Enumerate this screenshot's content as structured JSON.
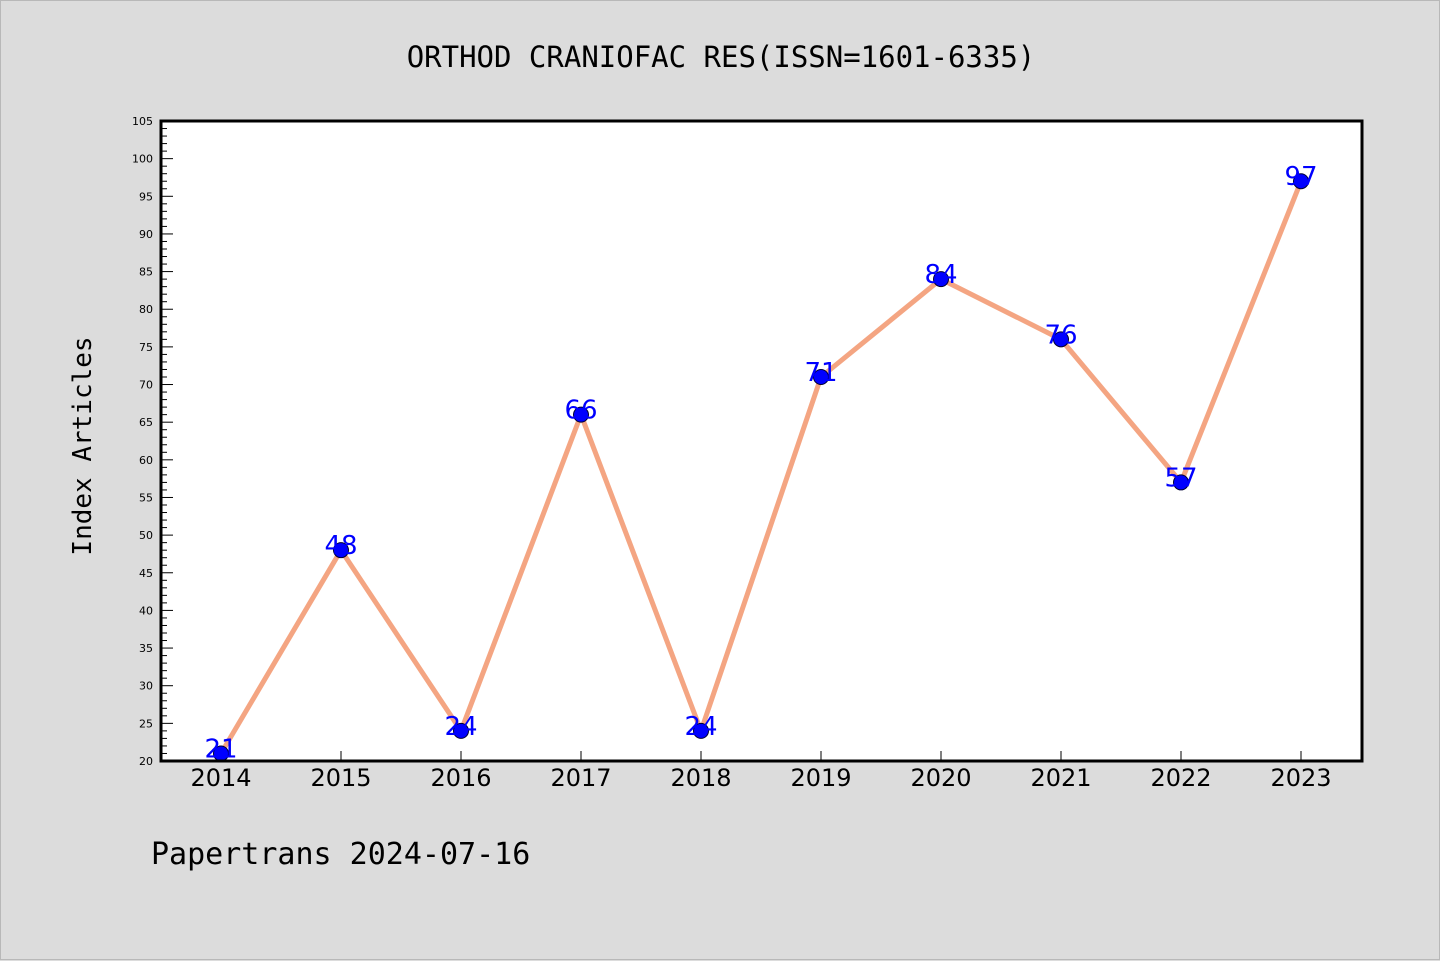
{
  "chart_data": {
    "type": "line",
    "title": "ORTHOD CRANIOFAC RES(ISSN=1601-6335)",
    "ylabel": "Index Articles",
    "xlabel": "",
    "categories": [
      "2014",
      "2015",
      "2016",
      "2017",
      "2018",
      "2019",
      "2020",
      "2021",
      "2022",
      "2023"
    ],
    "values": [
      21,
      48,
      24,
      66,
      24,
      71,
      84,
      76,
      57,
      97
    ],
    "data_labels": [
      "21",
      "48",
      "24",
      "66",
      "24",
      "71",
      "84",
      "76",
      "57",
      "97"
    ],
    "ylim": [
      20,
      105
    ],
    "yticks": [
      "20",
      "25",
      "30",
      "35",
      "40",
      "45",
      "50",
      "55",
      "60",
      "65",
      "70",
      "75",
      "80",
      "85",
      "90",
      "95",
      "100",
      "105"
    ],
    "grid": false,
    "line_color": "#f4a582",
    "marker_color": "#0000ff",
    "label_color": "#0000ff"
  },
  "footer": "Papertrans 2024-07-16"
}
